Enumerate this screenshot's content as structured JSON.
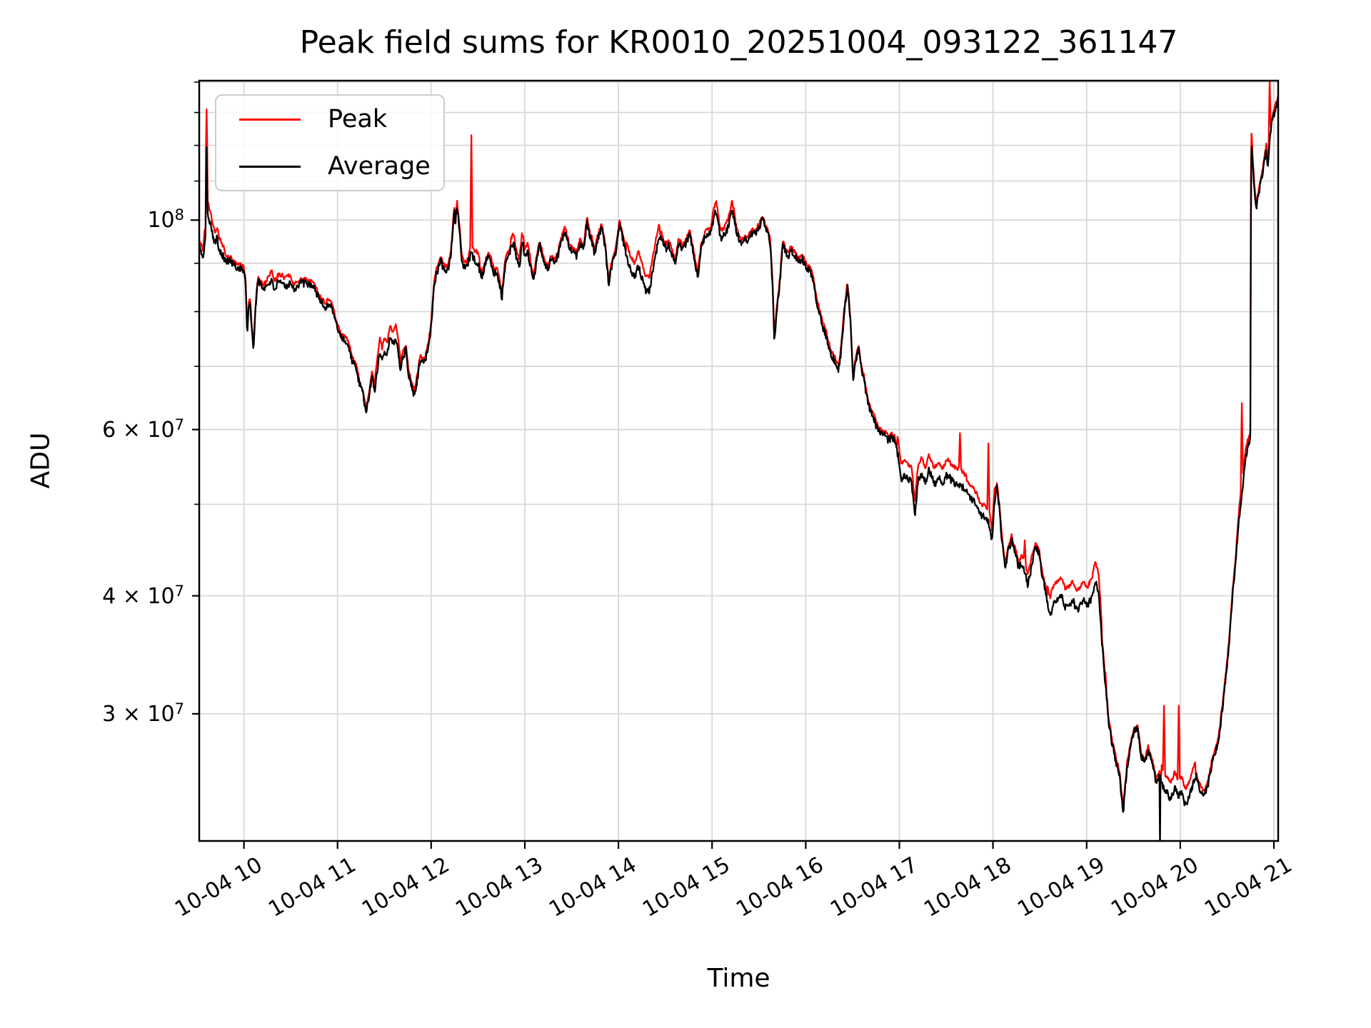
{
  "chart_data": {
    "type": "line",
    "title": "Peak field sums for KR0010_20251004_093122_361147",
    "xlabel": "Time",
    "ylabel": "ADU",
    "yscale": "log",
    "grid": "both",
    "legend_position": "upper left",
    "value_unit": "ADU",
    "value_scale": 1000000,
    "xlim_hours": [
      9.5228,
      21.0455
    ],
    "ylim": [
      22,
      140.5
    ],
    "x_ticks": [
      {
        "t": 10,
        "label": "10-04 10"
      },
      {
        "t": 11,
        "label": "10-04 11"
      },
      {
        "t": 12,
        "label": "10-04 12"
      },
      {
        "t": 13,
        "label": "10-04 13"
      },
      {
        "t": 14,
        "label": "10-04 14"
      },
      {
        "t": 15,
        "label": "10-04 15"
      },
      {
        "t": 16,
        "label": "10-04 16"
      },
      {
        "t": 17,
        "label": "10-04 17"
      },
      {
        "t": 18,
        "label": "10-04 18"
      },
      {
        "t": 19,
        "label": "10-04 19"
      },
      {
        "t": 20,
        "label": "10-04 20"
      },
      {
        "t": 21,
        "label": "10-04 21"
      }
    ],
    "y_ticks": [
      {
        "v": 100,
        "base": "10",
        "exp": "8",
        "kind": "major"
      },
      {
        "v": 60,
        "base": "6 × 10",
        "exp": "7",
        "kind": "minor-labeled"
      },
      {
        "v": 40,
        "base": "4 × 10",
        "exp": "7",
        "kind": "minor-labeled"
      },
      {
        "v": 30,
        "base": "3 × 10",
        "exp": "7",
        "kind": "minor-labeled"
      }
    ],
    "y_minor_ticks": [
      50,
      70,
      80,
      90,
      110,
      120,
      130,
      140
    ],
    "series": [
      {
        "name": "Peak",
        "color": "#ff0000"
      },
      {
        "name": "Average",
        "color": "#000000"
      }
    ],
    "avg_anchors": [
      [
        9.523,
        93
      ],
      [
        9.545,
        91.5
      ],
      [
        9.565,
        90
      ],
      [
        9.578,
        94.5
      ],
      [
        9.59,
        96
      ],
      [
        9.601,
        120
      ],
      [
        9.612,
        103
      ],
      [
        9.625,
        100.5
      ],
      [
        9.64,
        99.5
      ],
      [
        9.655,
        98.5
      ],
      [
        9.67,
        96.5
      ],
      [
        9.685,
        95
      ],
      [
        9.7,
        94.2
      ],
      [
        9.715,
        95.8
      ],
      [
        9.73,
        93.8
      ],
      [
        9.75,
        93.2
      ],
      [
        9.77,
        92.2
      ],
      [
        9.79,
        91.4
      ],
      [
        9.82,
        91
      ],
      [
        9.85,
        90.6
      ],
      [
        9.88,
        89.8
      ],
      [
        9.91,
        89.2
      ],
      [
        9.94,
        88.8
      ],
      [
        9.97,
        88.6
      ],
      [
        10.0,
        88.2
      ],
      [
        10.02,
        85.5
      ],
      [
        10.035,
        75.2
      ],
      [
        10.05,
        80.5
      ],
      [
        10.065,
        81.5
      ],
      [
        10.085,
        76
      ],
      [
        10.1,
        73.6
      ],
      [
        10.115,
        78
      ],
      [
        10.13,
        82.5
      ],
      [
        10.15,
        86.3
      ],
      [
        10.175,
        85.4
      ],
      [
        10.2,
        84.6
      ],
      [
        10.23,
        85.2
      ],
      [
        10.26,
        85.6
      ],
      [
        10.29,
        85.9
      ],
      [
        10.32,
        84.8
      ],
      [
        10.35,
        84.4
      ],
      [
        10.38,
        85.6
      ],
      [
        10.41,
        86.3
      ],
      [
        10.44,
        85.2
      ],
      [
        10.47,
        85
      ],
      [
        10.5,
        85.8
      ],
      [
        10.53,
        85.3
      ],
      [
        10.56,
        85.9
      ],
      [
        10.6,
        86.2
      ],
      [
        10.64,
        85.4
      ],
      [
        10.68,
        85
      ],
      [
        10.72,
        84.6
      ],
      [
        10.76,
        84
      ],
      [
        10.8,
        83
      ],
      [
        10.84,
        82
      ],
      [
        10.87,
        80.6
      ],
      [
        10.9,
        80.9
      ],
      [
        10.93,
        80.2
      ],
      [
        10.96,
        79.4
      ],
      [
        11.0,
        77.6
      ],
      [
        11.04,
        76
      ],
      [
        11.08,
        74.2
      ],
      [
        11.12,
        72.6
      ],
      [
        11.16,
        70.8
      ],
      [
        11.2,
        68.8
      ],
      [
        11.24,
        66.2
      ],
      [
        11.28,
        64.2
      ],
      [
        11.31,
        63.4
      ],
      [
        11.34,
        65.2
      ],
      [
        11.37,
        68.8
      ],
      [
        11.395,
        66
      ],
      [
        11.42,
        68.2
      ],
      [
        11.45,
        72.4
      ],
      [
        11.475,
        70.8
      ],
      [
        11.5,
        72.8
      ],
      [
        11.53,
        71.8
      ],
      [
        11.56,
        74.4
      ],
      [
        11.59,
        73.6
      ],
      [
        11.62,
        74.8
      ],
      [
        11.645,
        72
      ],
      [
        11.67,
        68.6
      ],
      [
        11.7,
        72.4
      ],
      [
        11.73,
        73
      ],
      [
        11.76,
        68
      ],
      [
        11.79,
        66.2
      ],
      [
        11.82,
        65.2
      ],
      [
        11.85,
        68
      ],
      [
        11.88,
        70.8
      ],
      [
        11.91,
        70.4
      ],
      [
        11.94,
        71.2
      ],
      [
        11.97,
        73
      ],
      [
        12.0,
        77
      ],
      [
        12.03,
        84
      ],
      [
        12.06,
        88.5
      ],
      [
        12.09,
        90.2
      ],
      [
        12.12,
        88.8
      ],
      [
        12.15,
        88.4
      ],
      [
        12.18,
        89.4
      ],
      [
        12.21,
        92
      ],
      [
        12.245,
        103
      ],
      [
        12.26,
        99.5
      ],
      [
        12.275,
        104
      ],
      [
        12.3,
        98.5
      ],
      [
        12.325,
        92.5
      ],
      [
        12.35,
        89.2
      ],
      [
        12.38,
        88.6
      ],
      [
        12.41,
        90.2
      ],
      [
        12.43,
        92.5
      ],
      [
        12.46,
        91
      ],
      [
        12.49,
        90.2
      ],
      [
        12.52,
        88
      ],
      [
        12.55,
        87.6
      ],
      [
        12.58,
        89.4
      ],
      [
        12.61,
        91
      ],
      [
        12.64,
        89.2
      ],
      [
        12.67,
        87.2
      ],
      [
        12.7,
        88.6
      ],
      [
        12.73,
        86.6
      ],
      [
        12.755,
        83.2
      ],
      [
        12.78,
        87.8
      ],
      [
        12.81,
        90.6
      ],
      [
        12.85,
        92.8
      ],
      [
        12.88,
        93.6
      ],
      [
        12.91,
        91
      ],
      [
        12.94,
        90
      ],
      [
        12.97,
        95
      ],
      [
        13.0,
        91.2
      ],
      [
        13.03,
        93.2
      ],
      [
        13.06,
        90
      ],
      [
        13.095,
        87
      ],
      [
        13.13,
        91.8
      ],
      [
        13.16,
        94.2
      ],
      [
        13.19,
        91
      ],
      [
        13.22,
        89
      ],
      [
        13.25,
        88.6
      ],
      [
        13.28,
        91.2
      ],
      [
        13.32,
        90.2
      ],
      [
        13.36,
        92.6
      ],
      [
        13.4,
        95.8
      ],
      [
        13.43,
        98
      ],
      [
        13.47,
        94.2
      ],
      [
        13.51,
        92.8
      ],
      [
        13.55,
        91.2
      ],
      [
        13.59,
        94
      ],
      [
        13.63,
        93.2
      ],
      [
        13.665,
        100.5
      ],
      [
        13.7,
        95
      ],
      [
        13.74,
        93.2
      ],
      [
        13.78,
        94.8
      ],
      [
        13.82,
        99
      ],
      [
        13.86,
        93
      ],
      [
        13.895,
        84.6
      ],
      [
        13.93,
        88.8
      ],
      [
        13.97,
        92
      ],
      [
        14.01,
        98.6
      ],
      [
        14.05,
        95
      ],
      [
        14.09,
        91
      ],
      [
        14.13,
        88.6
      ],
      [
        14.17,
        87.2
      ],
      [
        14.21,
        89
      ],
      [
        14.25,
        86.2
      ],
      [
        14.29,
        84.8
      ],
      [
        14.33,
        84.2
      ],
      [
        14.37,
        88
      ],
      [
        14.41,
        92.8
      ],
      [
        14.45,
        95.8
      ],
      [
        14.49,
        93.6
      ],
      [
        14.53,
        94.4
      ],
      [
        14.57,
        92.8
      ],
      [
        14.605,
        90.8
      ],
      [
        14.64,
        94.8
      ],
      [
        14.68,
        93.8
      ],
      [
        14.72,
        94.4
      ],
      [
        14.76,
        95.8
      ],
      [
        14.8,
        93
      ],
      [
        14.845,
        86
      ],
      [
        14.88,
        92.8
      ],
      [
        14.92,
        95
      ],
      [
        14.96,
        97
      ],
      [
        15.0,
        99
      ],
      [
        15.045,
        101.8
      ],
      [
        15.09,
        96.2
      ],
      [
        15.13,
        95.4
      ],
      [
        15.17,
        97.8
      ],
      [
        15.215,
        102.6
      ],
      [
        15.26,
        98
      ],
      [
        15.3,
        95.6
      ],
      [
        15.34,
        94
      ],
      [
        15.38,
        95
      ],
      [
        15.42,
        95.4
      ],
      [
        15.46,
        96
      ],
      [
        15.5,
        97.4
      ],
      [
        15.55,
        99.4
      ],
      [
        15.585,
        97
      ],
      [
        15.62,
        94.5
      ],
      [
        15.645,
        86
      ],
      [
        15.665,
        74.5
      ],
      [
        15.69,
        80
      ],
      [
        15.72,
        84.5
      ],
      [
        15.755,
        93.4
      ],
      [
        15.79,
        91.4
      ],
      [
        15.83,
        92.4
      ],
      [
        15.87,
        91
      ],
      [
        15.91,
        90.4
      ],
      [
        15.95,
        91.2
      ],
      [
        16.0,
        89.2
      ],
      [
        16.05,
        87.4
      ],
      [
        16.1,
        84
      ],
      [
        16.15,
        80
      ],
      [
        16.2,
        76.4
      ],
      [
        16.24,
        73.6
      ],
      [
        16.28,
        71.2
      ],
      [
        16.32,
        69.8
      ],
      [
        16.35,
        69.2
      ],
      [
        16.38,
        73
      ],
      [
        16.41,
        80
      ],
      [
        16.445,
        85.6
      ],
      [
        16.475,
        79
      ],
      [
        16.505,
        67.6
      ],
      [
        16.535,
        70.8
      ],
      [
        16.565,
        73.4
      ],
      [
        16.6,
        69
      ],
      [
        16.63,
        66.4
      ],
      [
        16.67,
        63.8
      ],
      [
        16.71,
        61.6
      ],
      [
        16.75,
        60
      ],
      [
        16.79,
        59
      ],
      [
        16.83,
        58.6
      ],
      [
        16.87,
        59.4
      ],
      [
        16.91,
        58.2
      ],
      [
        16.95,
        58.6
      ],
      [
        16.985,
        56.4
      ],
      [
        17.015,
        53.6
      ],
      [
        17.05,
        53.8
      ],
      [
        17.09,
        53.2
      ],
      [
        17.13,
        52.8
      ],
      [
        17.165,
        49
      ],
      [
        17.2,
        52.8
      ],
      [
        17.24,
        53.4
      ],
      [
        17.28,
        53.2
      ],
      [
        17.32,
        53.8
      ],
      [
        17.36,
        53
      ],
      [
        17.4,
        53.4
      ],
      [
        17.44,
        53
      ],
      [
        17.48,
        52.8
      ],
      [
        17.52,
        53.2
      ],
      [
        17.56,
        52.6
      ],
      [
        17.6,
        53
      ],
      [
        17.65,
        53
      ],
      [
        17.69,
        52
      ],
      [
        17.73,
        51.4
      ],
      [
        17.77,
        50.6
      ],
      [
        17.81,
        50
      ],
      [
        17.85,
        49.4
      ],
      [
        17.89,
        48.6
      ],
      [
        17.93,
        48.8
      ],
      [
        17.965,
        47.6
      ],
      [
        17.99,
        45.6
      ],
      [
        18.015,
        50.4
      ],
      [
        18.04,
        52.8
      ],
      [
        18.065,
        50.2
      ],
      [
        18.09,
        46.4
      ],
      [
        18.13,
        42.6
      ],
      [
        18.17,
        45.2
      ],
      [
        18.2,
        46.2
      ],
      [
        18.235,
        44.6
      ],
      [
        18.27,
        42.6
      ],
      [
        18.3,
        43.6
      ],
      [
        18.335,
        42.6
      ],
      [
        18.37,
        40.6
      ],
      [
        18.41,
        43.4
      ],
      [
        18.45,
        45
      ],
      [
        18.49,
        44.4
      ],
      [
        18.53,
        42.2
      ],
      [
        18.57,
        40.4
      ],
      [
        18.61,
        38
      ],
      [
        18.65,
        39
      ],
      [
        18.69,
        39.6
      ],
      [
        18.73,
        40
      ],
      [
        18.77,
        38.6
      ],
      [
        18.81,
        38.8
      ],
      [
        18.85,
        39.6
      ],
      [
        18.89,
        38.6
      ],
      [
        18.93,
        38.8
      ],
      [
        18.97,
        39.2
      ],
      [
        19.01,
        38.6
      ],
      [
        19.05,
        39.8
      ],
      [
        19.09,
        41.6
      ],
      [
        19.125,
        40.4
      ],
      [
        19.16,
        36
      ],
      [
        19.195,
        32.6
      ],
      [
        19.23,
        29.8
      ],
      [
        19.27,
        28.2
      ],
      [
        19.31,
        27
      ],
      [
        19.35,
        25.6
      ],
      [
        19.39,
        23.5
      ],
      [
        19.43,
        26
      ],
      [
        19.47,
        27.6
      ],
      [
        19.51,
        28.8
      ],
      [
        19.545,
        29
      ],
      [
        19.58,
        27.2
      ],
      [
        19.62,
        26.6
      ],
      [
        19.66,
        27.6
      ],
      [
        19.7,
        26.8
      ],
      [
        19.74,
        25.6
      ],
      [
        19.78,
        25.8
      ],
      [
        19.82,
        25.2
      ],
      [
        19.86,
        24.6
      ],
      [
        19.9,
        24.3
      ],
      [
        19.94,
        24.8
      ],
      [
        19.98,
        24.4
      ],
      [
        20.02,
        24.6
      ],
      [
        20.06,
        24.2
      ],
      [
        20.1,
        24.6
      ],
      [
        20.14,
        25.4
      ],
      [
        20.17,
        26
      ],
      [
        20.21,
        25.1
      ],
      [
        20.25,
        24.6
      ],
      [
        20.29,
        25.2
      ],
      [
        20.33,
        26.2
      ],
      [
        20.37,
        27.4
      ],
      [
        20.41,
        28.4
      ],
      [
        20.45,
        30.4
      ],
      [
        20.49,
        33
      ],
      [
        20.53,
        36.5
      ],
      [
        20.57,
        41
      ],
      [
        20.61,
        46
      ],
      [
        20.65,
        51
      ],
      [
        20.68,
        54
      ],
      [
        20.71,
        56.5
      ],
      [
        20.735,
        59
      ],
      [
        20.748,
        58.5
      ],
      [
        20.758,
        121
      ],
      [
        20.775,
        113
      ],
      [
        20.795,
        107
      ],
      [
        20.815,
        104.5
      ],
      [
        20.84,
        108
      ],
      [
        20.87,
        112
      ],
      [
        20.9,
        116
      ],
      [
        20.92,
        118
      ],
      [
        20.936,
        113.5
      ],
      [
        20.952,
        122
      ],
      [
        20.97,
        126
      ],
      [
        21.0,
        128.5
      ],
      [
        21.02,
        130.5
      ],
      [
        21.045,
        133
      ]
    ],
    "peak_offset_base": 0.005,
    "peak_bands": [
      [
        9.54,
        9.8,
        0.016
      ],
      [
        10.25,
        10.5,
        0.01
      ],
      [
        11.4,
        11.67,
        0.02
      ],
      [
        12.4,
        12.52,
        0.015
      ],
      [
        12.85,
        13.06,
        0.012
      ],
      [
        14.08,
        14.44,
        0.026
      ],
      [
        15.0,
        15.25,
        0.01
      ],
      [
        16.98,
        17.72,
        0.028
      ],
      [
        17.72,
        18.02,
        0.018
      ],
      [
        18.3,
        18.42,
        0.015
      ],
      [
        18.58,
        19.16,
        0.038
      ],
      [
        19.8,
        20.16,
        0.03
      ],
      [
        20.6,
        20.72,
        0.012
      ]
    ],
    "peak_spikes": [
      [
        9.602,
        131
      ],
      [
        10.3,
        88.5
      ],
      [
        12.432,
        123
      ],
      [
        17.65,
        59.5
      ],
      [
        17.952,
        58
      ],
      [
        18.34,
        45.8
      ],
      [
        19.2,
        33.2
      ],
      [
        19.825,
        30.6
      ],
      [
        19.985,
        30.6
      ],
      [
        20.66,
        64
      ],
      [
        20.758,
        123.5
      ],
      [
        20.953,
        140.5
      ]
    ],
    "avg_down_spikes": [
      [
        19.785,
        21.5
      ]
    ],
    "noise": {
      "coarse_amp": 0.012,
      "fine_amp": 0.009,
      "peak_fine_amp": 0.01,
      "seed_coarse": 303,
      "seed_fine1": 101,
      "seed_fine2": 202
    }
  },
  "colors": {
    "peak": "#ff0000",
    "average": "#000000",
    "grid": "#d8d8d8",
    "frame": "#000000",
    "background": "#ffffff",
    "legend_border": "#cccccc"
  },
  "legend": {
    "items": [
      {
        "label": "Peak",
        "color": "#ff0000"
      },
      {
        "label": "Average",
        "color": "#000000"
      }
    ]
  }
}
